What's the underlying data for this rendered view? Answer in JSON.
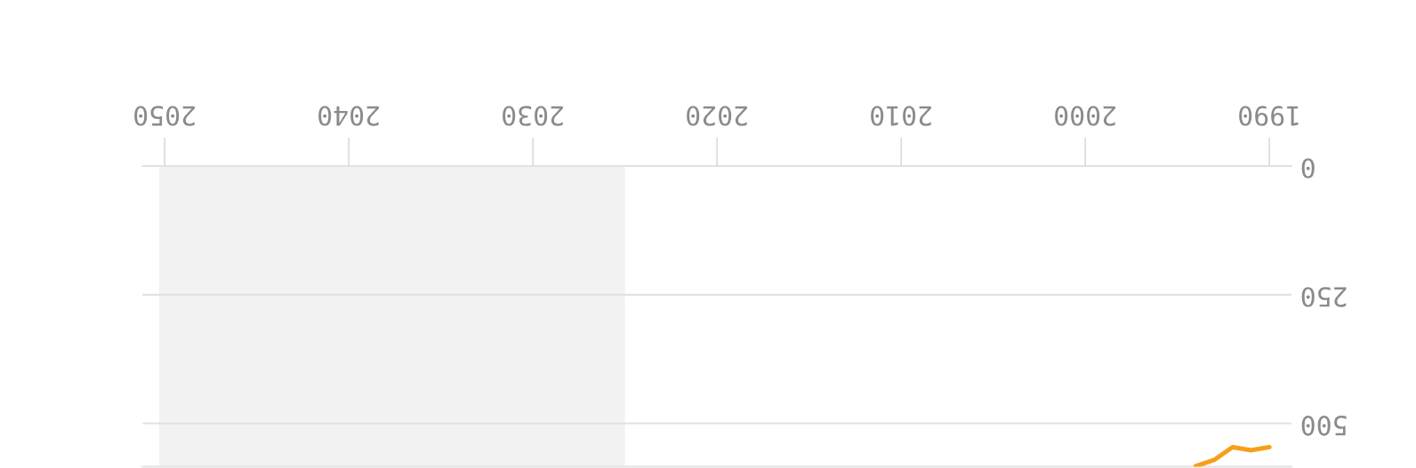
{
  "chart_data": {
    "type": "line",
    "x": [
      1990,
      1991,
      1992,
      1993,
      1994
    ],
    "series": [
      {
        "color": "#f6a01a",
        "values": [
          546,
          552,
          546,
          571,
          583
        ]
      }
    ],
    "xlim": [
      2051.2,
      1988.8
    ],
    "ylim": [
      584,
      0
    ],
    "xticks": [
      1990,
      2000,
      2010,
      2020,
      2030,
      2040,
      2050
    ],
    "yticks": [
      0,
      250,
      500
    ],
    "bands": [
      {
        "axis": "x",
        "from": 2025,
        "to": 2050.3,
        "color": "#f2f2f2"
      }
    ],
    "grid": "y"
  }
}
